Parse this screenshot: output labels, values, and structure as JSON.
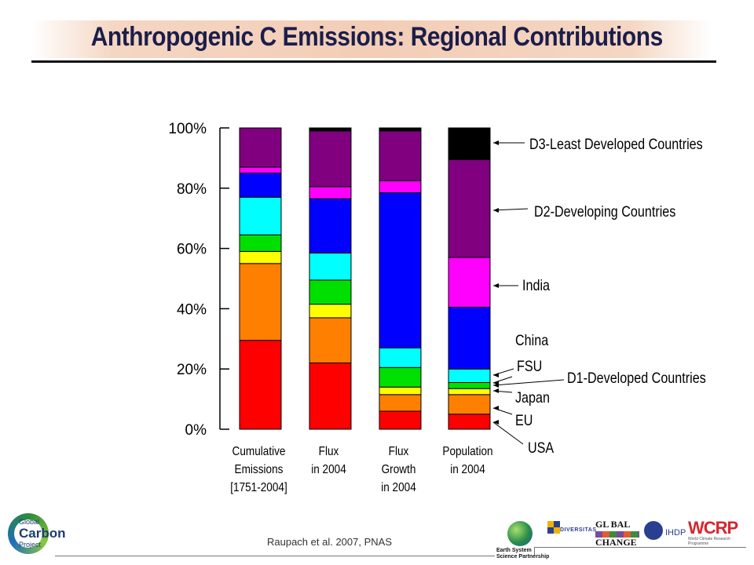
{
  "page": {
    "title": "Anthropogenic C Emissions: Regional Contributions",
    "citation": "Raupach et al. 2007, PNAS"
  },
  "chart_data": {
    "type": "bar",
    "stacked": true,
    "categories": [
      [
        "Cumulative",
        "Emissions",
        "[1751-2004]"
      ],
      [
        "Flux",
        "in 2004"
      ],
      [
        "Flux",
        "Growth",
        "in 2004"
      ],
      [
        "Population",
        "in 2004"
      ]
    ],
    "ylim": [
      0,
      100
    ],
    "yticks": [
      "0%",
      "20%",
      "40%",
      "60%",
      "80%",
      "100%"
    ],
    "series": [
      {
        "color": "#ff0000",
        "values": [
          29.5,
          22,
          6,
          5
        ]
      },
      {
        "color": "#ff8000",
        "values": [
          25.5,
          15,
          5.5,
          6.5
        ]
      },
      {
        "color": "#ffff00",
        "values": [
          4,
          4.5,
          2.5,
          2
        ]
      },
      {
        "color": "#00e000",
        "values": [
          5.5,
          8,
          6.5,
          2
        ]
      },
      {
        "color": "#00ffff",
        "values": [
          12.5,
          9,
          6.5,
          4.5
        ]
      },
      {
        "color": "#0000ff",
        "values": [
          8,
          18,
          51.5,
          20.5
        ]
      },
      {
        "color": "#ff00ff",
        "values": [
          2,
          4,
          4,
          16.5
        ]
      },
      {
        "color": "#800080",
        "values": [
          13,
          18.5,
          16.5,
          32.5
        ]
      },
      {
        "color": "#000000",
        "values": [
          0,
          1,
          1,
          10.5
        ]
      }
    ],
    "legend_labels": [
      {
        "text": "D3-Least Developed Countries"
      },
      {
        "text": "D2-Developing Countries"
      },
      {
        "text": "India"
      },
      {
        "text": "China"
      },
      {
        "text": "FSU"
      },
      {
        "text": "D1-Developed Countries"
      },
      {
        "text": "Japan"
      },
      {
        "text": "EU"
      },
      {
        "text": "USA"
      }
    ]
  },
  "logos": {
    "gcp": [
      "Global",
      "Carbon",
      "Project"
    ],
    "ess": [
      "Earth System",
      "Science Partnership"
    ],
    "diversitas": "DIVERSITAS",
    "global_change": [
      "GL BAL",
      "CHANGE"
    ],
    "ihdp": "IHDP",
    "wcrp": "WCRP",
    "wcrp_sub": "World Climate Research Programme"
  },
  "colors": {
    "title": "#1b1e4b",
    "title_band": "#f3cdb6"
  }
}
